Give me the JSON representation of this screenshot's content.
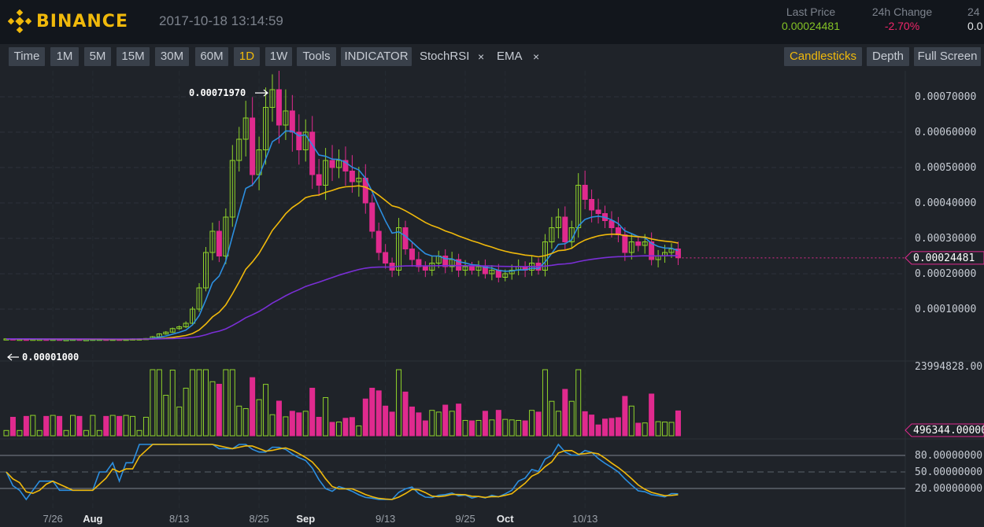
{
  "header": {
    "logo_text": "BINANCE",
    "datetime": "2017-10-18 13:14:59",
    "last_price_label": "Last Price",
    "last_price": "0.00024481",
    "change_label": "24h Change",
    "change_value": "-2.70%",
    "cut_label": "24",
    "cut_value": "0.0"
  },
  "toolbar": {
    "intervals": [
      "Time",
      "1M",
      "5M",
      "15M",
      "30M",
      "60M",
      "1D",
      "1W",
      "Tools",
      "INDICATOR"
    ],
    "active_interval": "1D",
    "indicators": [
      "StochRSI",
      "EMA"
    ],
    "remove_glyph": "×",
    "right_buttons": [
      "Candlesticks",
      "Depth",
      "Full Screen"
    ],
    "active_right": "Candlesticks"
  },
  "colors": {
    "up": "#8fd32a",
    "down": "#e02a8e",
    "ema_short": "#2c8fe0",
    "ema_mid": "#f0b90b",
    "ema_long": "#7a2fd6",
    "accent": "#f0b90b",
    "negative": "#f0266a",
    "positive": "#84c225"
  },
  "chart_data": {
    "type": "candlestick",
    "price_axis": [
      "0.00070000",
      "0.00060000",
      "0.00050000",
      "0.00040000",
      "0.00030000",
      "0.00020000",
      "0.00010000"
    ],
    "price_ticks": [
      0.0007,
      0.0006,
      0.0005,
      0.0004,
      0.0003,
      0.0002,
      0.0001
    ],
    "price_range": [
      0.0,
      0.00075
    ],
    "current_price_label": "0.00024481",
    "current_price": 0.00024481,
    "high_annotation": "0.00071970",
    "high_value": 0.0007197,
    "low_annotation": "0.00001000",
    "low_value": 1e-05,
    "volume_top_label": "23994828.00",
    "volume_max": 23994828,
    "volume_current_label": "496344.00000",
    "stoch_axis": [
      "80.00000000",
      "50.00000000",
      "20.00000000"
    ],
    "stoch_levels": [
      80,
      50,
      20
    ],
    "x_labels": [
      "7/26",
      "Aug",
      "8/13",
      "8/25",
      "Sep",
      "9/13",
      "9/25",
      "Oct",
      "10/13"
    ],
    "x_label_days": [
      7,
      13,
      26,
      38,
      45,
      57,
      69,
      75,
      87
    ],
    "closes": [
      1.6e-05,
      1.5e-05,
      1.5e-05,
      1.4e-05,
      1.5e-05,
      1.5e-05,
      1.4e-05,
      1.5e-05,
      1.4e-05,
      1.4e-05,
      1.5e-05,
      1.4e-05,
      1.4e-05,
      1.5e-05,
      1.5e-05,
      1.4e-05,
      1.5e-05,
      1.4e-05,
      1.5e-05,
      1.6e-05,
      1.6e-05,
      1.7e-05,
      2.2e-05,
      3e-05,
      3.5e-05,
      4.5e-05,
      5e-05,
      6e-05,
      0.0001,
      0.00016,
      0.00026,
      0.00032,
      0.00025,
      0.00036,
      0.00052,
      0.00058,
      0.00064,
      0.00048,
      0.00055,
      0.00067,
      0.00072,
      0.00062,
      0.00066,
      0.0006,
      0.00055,
      0.0006,
      0.00048,
      0.00045,
      0.00052,
      0.0005,
      0.00052,
      0.00049,
      0.00046,
      0.00047,
      0.0004,
      0.00032,
      0.00026,
      0.00023,
      0.00021,
      0.00033,
      0.00027,
      0.00024,
      0.00022,
      0.00021,
      0.00023,
      0.00025,
      0.00022,
      0.00024,
      0.00021,
      0.00022,
      0.00021,
      0.00022,
      0.0002,
      0.00021,
      0.00019,
      0.0002,
      0.00021,
      0.00022,
      0.00021,
      0.00023,
      0.00021,
      0.00029,
      0.00033,
      0.00036,
      0.00029,
      0.00033,
      0.00045,
      0.00041,
      0.00038,
      0.00037,
      0.00035,
      0.00033,
      0.00031,
      0.00026,
      0.00029,
      0.00028,
      0.00029,
      0.00024,
      0.00025,
      0.00026,
      0.00027,
      0.000245
    ]
  }
}
